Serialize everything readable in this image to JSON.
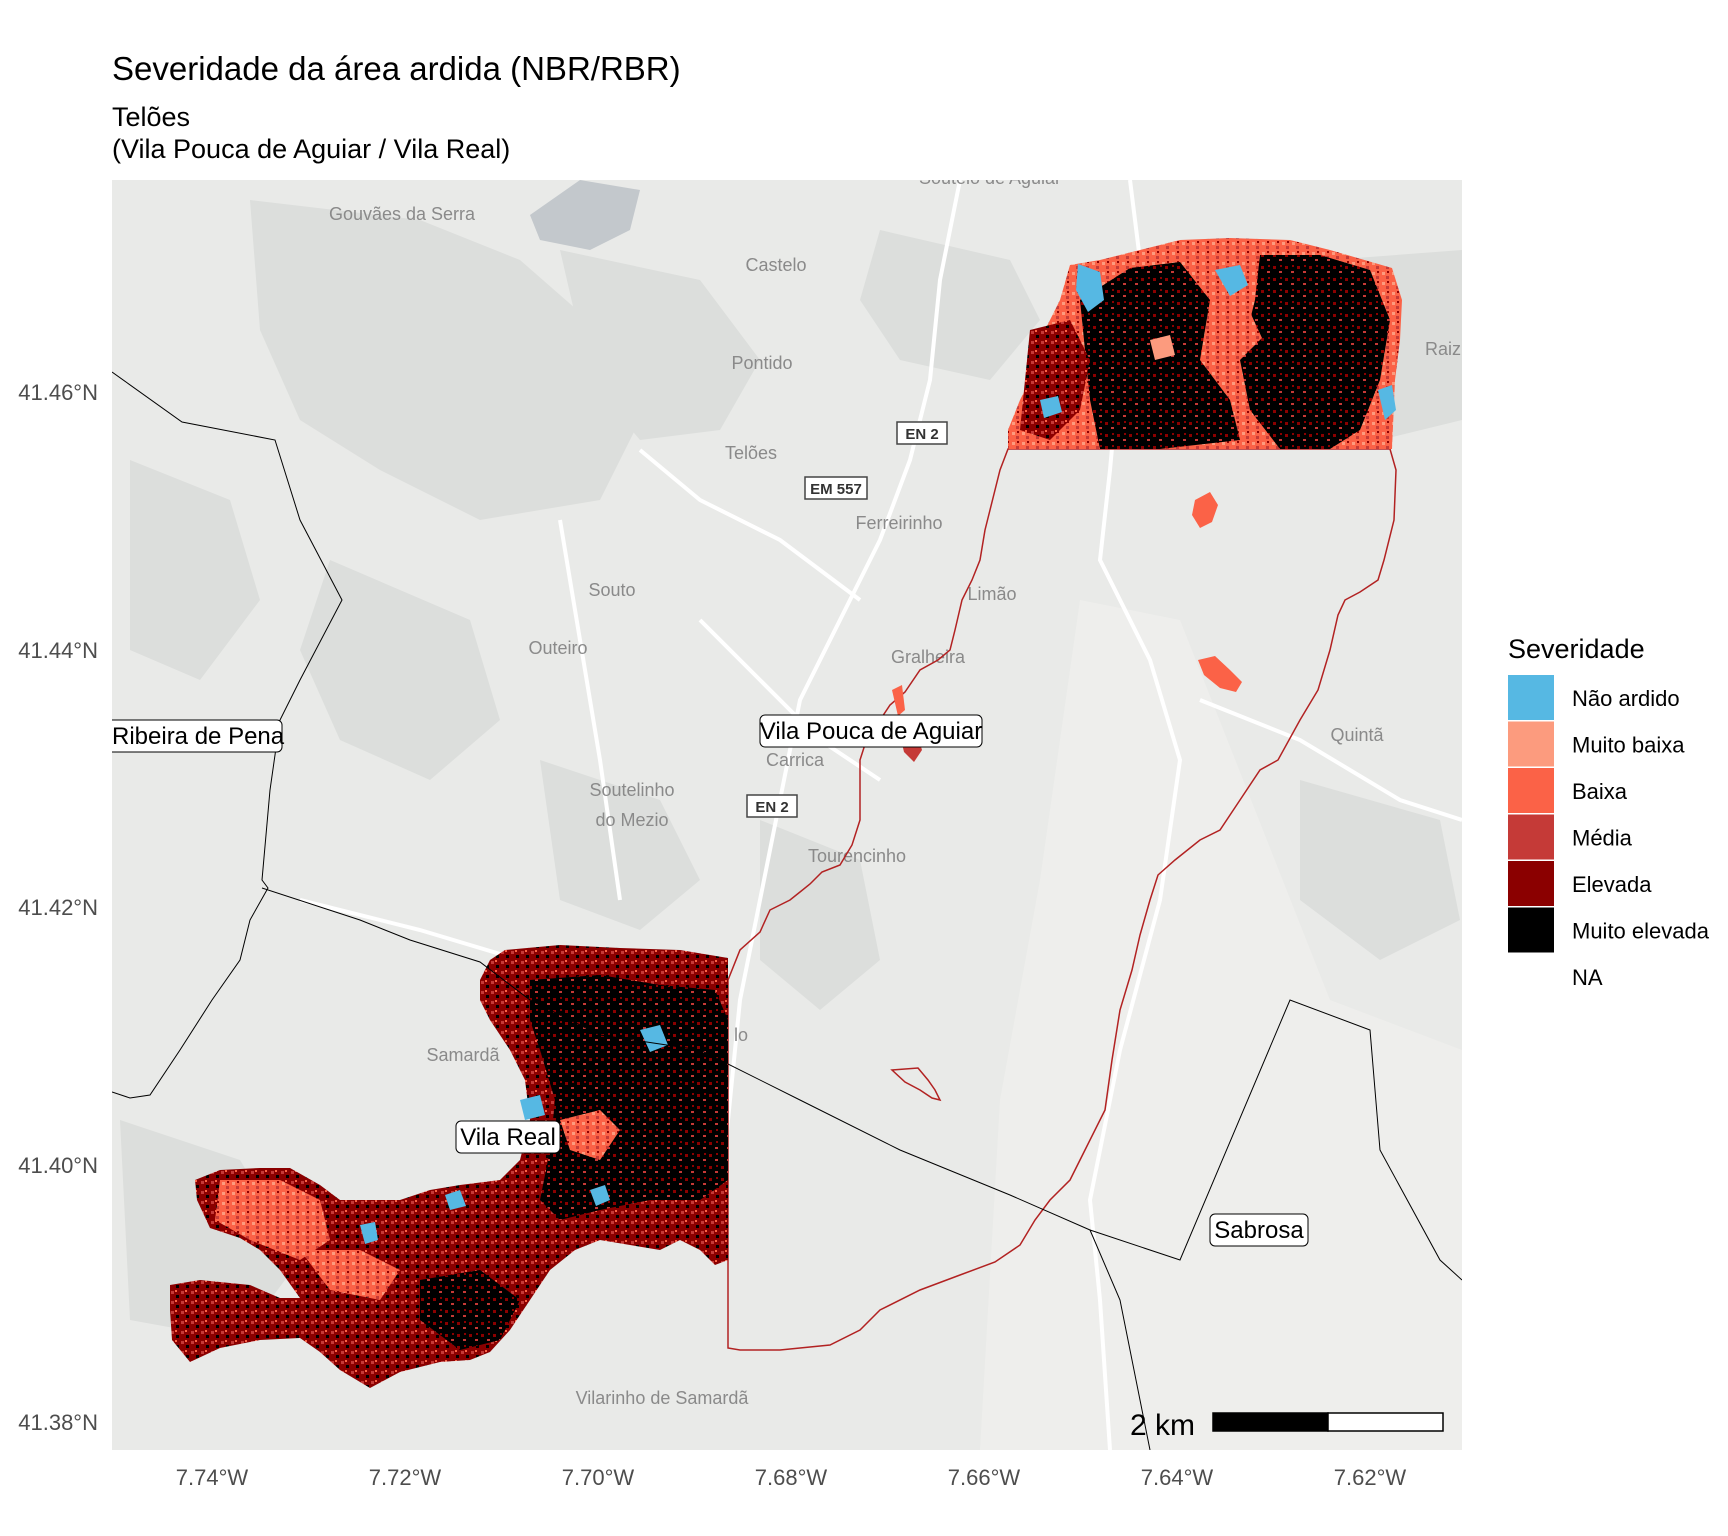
{
  "title": "Severidade da área ardida (NBR/RBR)",
  "subtitle_line1": "Telões",
  "subtitle_line2": "(Vila Pouca de Aguiar / Vila Real)",
  "axes": {
    "y_ticks": [
      "41.46°N",
      "41.44°N",
      "41.42°N",
      "41.40°N",
      "41.38°N"
    ],
    "x_ticks": [
      "7.74°W",
      "7.72°W",
      "7.70°W",
      "7.68°W",
      "7.66°W",
      "7.64°W",
      "7.62°W"
    ]
  },
  "legend": {
    "title": "Severidade",
    "items": [
      {
        "label": "Não ardido",
        "color": "#56b8e3"
      },
      {
        "label": "Muito baixa",
        "color": "#fc9b7e"
      },
      {
        "label": "Baixa",
        "color": "#fb6247"
      },
      {
        "label": "Média",
        "color": "#c53a37"
      },
      {
        "label": "Elevada",
        "color": "#8b0000"
      },
      {
        "label": "Muito elevada",
        "color": "#000000"
      },
      {
        "label": "NA",
        "color": "none"
      }
    ]
  },
  "municipality_labels": {
    "ribeira": "Ribeira de Pena",
    "vpa": "Vila Pouca de Aguiar",
    "vila_real": "Vila Real",
    "sabrosa": "Sabrosa"
  },
  "basemap_places": {
    "soutelo": "Soutelo de Aguiar",
    "gouvaes": "Gouvães da Serra",
    "castelo": "Castelo",
    "pontido": "Pontido",
    "teloes": "Telões",
    "ferreirinho": "Ferreirinho",
    "souto": "Souto",
    "outeiro": "Outeiro",
    "limao": "Limão",
    "gralheira": "Gralheira",
    "carrica": "Carrica",
    "soutelinho1": "Soutelinho",
    "soutelinho2": "do Mezio",
    "tourencinho": "Tourencinho",
    "samarda": "Samardã",
    "quinta": "Quintã",
    "raiz": "Raiz",
    "vilarinho": "Vilarinho de Samardã",
    "partial_lo": "lo"
  },
  "road_labels": {
    "en2_top": "EN 2",
    "em557": "EM 557",
    "en2_bottom": "EN 2"
  },
  "scale_bar": {
    "label": "2 km"
  },
  "colors": {
    "basemap": "#e9eae8",
    "vegetation": "#dcdedc",
    "water": "#c3c8cc",
    "perimeter": "#b22222",
    "boundary": "#000000"
  }
}
